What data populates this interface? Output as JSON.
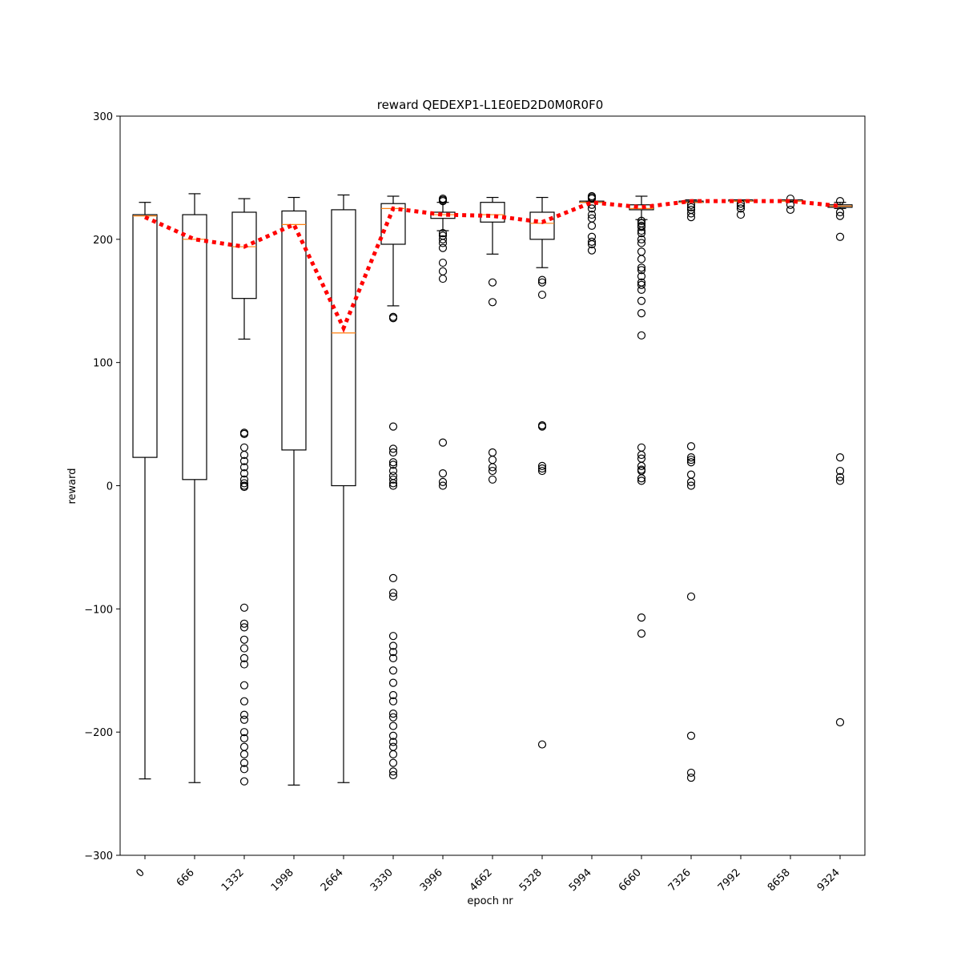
{
  "chart_data": {
    "type": "box",
    "title": "reward QEDEXP1-L1E0ED2D0M0R0F0",
    "xlabel": "epoch nr",
    "ylabel": "reward",
    "categories": [
      "0",
      "666",
      "1332",
      "1998",
      "2664",
      "3330",
      "3996",
      "4662",
      "5328",
      "5994",
      "6660",
      "7326",
      "7992",
      "8658",
      "9324"
    ],
    "ylim": [
      -300,
      300
    ],
    "yticks": [
      {
        "value": -300,
        "label": "−300"
      },
      {
        "value": -200,
        "label": "−200"
      },
      {
        "value": -100,
        "label": "−100"
      },
      0,
      100,
      200,
      300
    ],
    "box_color": "#000000",
    "median_color": "#ff7f0e",
    "mean_color": "#ff0000",
    "boxes": [
      {
        "whislo": -238,
        "q1": 23,
        "med": 219,
        "q3": 220,
        "whishi": 230,
        "mean": 218,
        "fliers": []
      },
      {
        "whislo": -241,
        "q1": 5,
        "med": 200,
        "q3": 220,
        "whishi": 237,
        "mean": 200,
        "fliers": []
      },
      {
        "whislo": 119,
        "q1": 152,
        "med": 194,
        "q3": 222,
        "whishi": 233,
        "mean": 194,
        "fliers": [
          43,
          42,
          31,
          25,
          20,
          15,
          10,
          5,
          2,
          0,
          -1,
          -99,
          -112,
          -115,
          -125,
          -132,
          -140,
          -145,
          -162,
          -175,
          -186,
          -190,
          -200,
          -205,
          -212,
          -218,
          -225,
          -230,
          -240
        ]
      },
      {
        "whislo": -243,
        "q1": 29,
        "med": 212,
        "q3": 223,
        "whishi": 234,
        "mean": 212,
        "fliers": []
      },
      {
        "whislo": -241,
        "q1": 0,
        "med": 124,
        "q3": 224,
        "whishi": 236,
        "mean": 128,
        "fliers": []
      },
      {
        "whislo": 146,
        "q1": 196,
        "med": 225,
        "q3": 229,
        "whishi": 235,
        "mean": 225,
        "fliers": [
          137,
          136,
          48,
          30,
          27,
          19,
          17,
          12,
          8,
          5,
          2,
          0,
          -75,
          -87,
          -90,
          -122,
          -130,
          -135,
          -140,
          -150,
          -160,
          -170,
          -175,
          -185,
          -188,
          -195,
          -203,
          -208,
          -212,
          -218,
          -225,
          -232,
          -235
        ]
      },
      {
        "whislo": 207,
        "q1": 217,
        "med": 220,
        "q3": 222,
        "whishi": 230,
        "mean": 220,
        "fliers": [
          233,
          232,
          231,
          205,
          203,
          200,
          197,
          193,
          181,
          174,
          168,
          35,
          10,
          3,
          0
        ]
      },
      {
        "whislo": 188,
        "q1": 214,
        "med": 220,
        "q3": 230,
        "whishi": 234,
        "mean": 219,
        "fliers": [
          165,
          149,
          27,
          21,
          15,
          12,
          5
        ]
      },
      {
        "whislo": 177,
        "q1": 200,
        "med": 213,
        "q3": 222,
        "whishi": 234,
        "mean": 214,
        "fliers": [
          167,
          165,
          155,
          49,
          48,
          16,
          14,
          12,
          -210
        ]
      },
      {
        "whislo": 230,
        "q1": 230,
        "med": 230,
        "q3": 231,
        "whishi": 231,
        "mean": 230,
        "fliers": [
          235,
          234,
          233,
          228,
          225,
          220,
          217,
          211,
          202,
          198,
          196,
          191
        ]
      },
      {
        "whislo": 216,
        "q1": 224,
        "med": 225,
        "q3": 228,
        "whishi": 235,
        "mean": 226,
        "fliers": [
          215,
          213,
          211,
          210,
          207,
          205,
          200,
          197,
          190,
          184,
          177,
          175,
          170,
          165,
          163,
          159,
          150,
          140,
          122,
          31,
          25,
          22,
          16,
          13,
          12,
          6,
          4,
          -107,
          -120
        ]
      },
      {
        "whislo": 230,
        "q1": 230,
        "med": 230,
        "q3": 231,
        "whishi": 232,
        "mean": 231,
        "fliers": [
          228,
          226,
          224,
          221,
          218,
          32,
          23,
          21,
          19,
          9,
          3,
          0,
          -90,
          -203,
          -233,
          -237
        ]
      },
      {
        "whislo": 231,
        "q1": 231,
        "med": 231,
        "q3": 232,
        "whishi": 232,
        "mean": 231,
        "fliers": [
          229,
          227,
          225,
          220
        ]
      },
      {
        "whislo": 231,
        "q1": 231,
        "med": 231,
        "q3": 232,
        "whishi": 232,
        "mean": 231,
        "fliers": [
          233,
          228,
          224
        ]
      },
      {
        "whislo": 225,
        "q1": 226,
        "med": 227,
        "q3": 228,
        "whishi": 230,
        "mean": 227,
        "fliers": [
          231,
          222,
          219,
          202,
          23,
          12,
          7,
          4,
          -192
        ]
      }
    ]
  }
}
